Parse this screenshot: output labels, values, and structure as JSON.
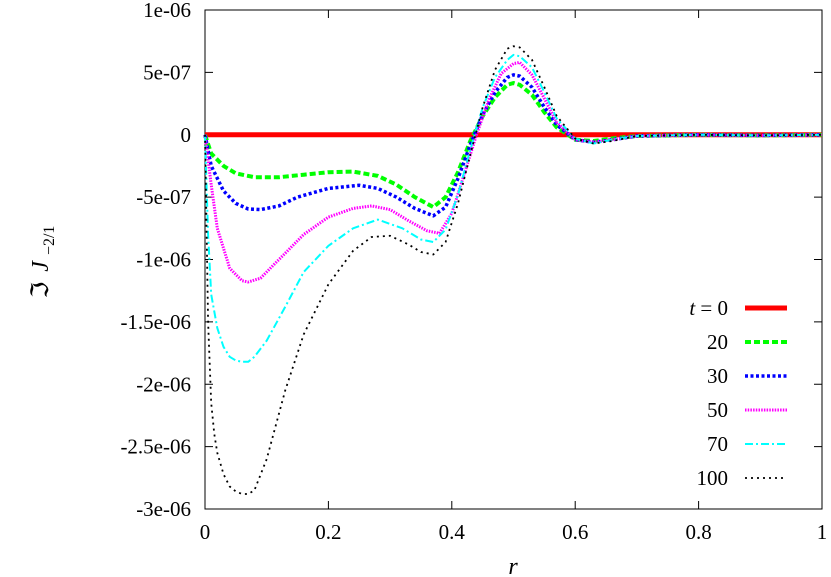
{
  "chart_data": {
    "type": "line",
    "xlabel": "r",
    "ylabel_prefix": "ℑ",
    "ylabel_main": "J",
    "ylabel_sub": "−2/1",
    "xlim": [
      0,
      1
    ],
    "ylim": [
      -3e-06,
      1e-06
    ],
    "x_ticks": [
      "0",
      "0.2",
      "0.4",
      "0.6",
      "0.8",
      "1"
    ],
    "y_ticks": [
      "1e-06",
      "5e-07",
      "0",
      "-5e-07",
      "-1e-06",
      "-1.5e-06",
      "-2e-06",
      "-2.5e-06",
      "-3e-06"
    ],
    "legend_position": "bottom-right",
    "legend_title_prefix": "t = ",
    "series": [
      {
        "name": "0",
        "color": "#ff0000",
        "dash": "solid",
        "x": [
          0,
          0.1,
          0.2,
          0.3,
          0.4,
          0.5,
          0.6,
          0.7,
          0.8,
          0.9,
          1.0
        ],
        "y": [
          0,
          0,
          0,
          0,
          0,
          0,
          0,
          0,
          0,
          0,
          0
        ]
      },
      {
        "name": "20",
        "color": "#00ff00",
        "dash": "dash",
        "x": [
          0,
          0.01,
          0.03,
          0.05,
          0.08,
          0.12,
          0.16,
          0.2,
          0.24,
          0.28,
          0.31,
          0.34,
          0.37,
          0.39,
          0.41,
          0.43,
          0.45,
          0.47,
          0.49,
          0.5,
          0.51,
          0.53,
          0.55,
          0.57,
          0.6,
          0.63,
          0.66,
          0.7,
          0.8,
          0.9,
          1.0
        ],
        "y": [
          0,
          -1.5e-07,
          -2.5e-07,
          -3.1e-07,
          -3.4e-07,
          -3.4e-07,
          -3.2e-07,
          -3e-07,
          -2.95e-07,
          -3.3e-07,
          -4e-07,
          -5e-07,
          -5.8e-07,
          -5e-07,
          -3e-07,
          -5e-08,
          1.5e-07,
          3e-07,
          4e-07,
          4.15e-07,
          4e-07,
          3.2e-07,
          1.8e-07,
          6e-08,
          -4e-08,
          -5e-08,
          -3e-08,
          -1e-08,
          0,
          -5e-09,
          0
        ]
      },
      {
        "name": "30",
        "color": "#0000ff",
        "dash": "dot",
        "x": [
          0,
          0.01,
          0.03,
          0.05,
          0.07,
          0.09,
          0.12,
          0.15,
          0.2,
          0.25,
          0.28,
          0.31,
          0.34,
          0.37,
          0.39,
          0.41,
          0.43,
          0.45,
          0.47,
          0.49,
          0.5,
          0.51,
          0.53,
          0.55,
          0.57,
          0.6,
          0.63,
          0.66,
          0.7,
          0.8,
          0.9,
          1.0
        ],
        "y": [
          0,
          -2.5e-07,
          -4.5e-07,
          -5.5e-07,
          -5.95e-07,
          -6e-07,
          -5.7e-07,
          -5e-07,
          -4.3e-07,
          -4.05e-07,
          -4.3e-07,
          -5e-07,
          -5.9e-07,
          -6.5e-07,
          -5.8e-07,
          -3.5e-07,
          -8e-08,
          1.6e-07,
          3.4e-07,
          4.6e-07,
          4.8e-07,
          4.7e-07,
          3.8e-07,
          2.2e-07,
          8e-08,
          -4e-08,
          -6e-08,
          -4e-08,
          -1e-08,
          0,
          -5e-09,
          0
        ]
      },
      {
        "name": "50",
        "color": "#ff00ff",
        "dash": "dense",
        "x": [
          0,
          0.01,
          0.02,
          0.04,
          0.06,
          0.07,
          0.09,
          0.12,
          0.16,
          0.2,
          0.24,
          0.27,
          0.3,
          0.33,
          0.36,
          0.38,
          0.4,
          0.42,
          0.44,
          0.46,
          0.48,
          0.5,
          0.51,
          0.53,
          0.55,
          0.57,
          0.6,
          0.63,
          0.66,
          0.7,
          0.8,
          0.9,
          1.0
        ],
        "y": [
          0,
          -4e-07,
          -7.5e-07,
          -1.07e-06,
          -1.17e-06,
          -1.18e-06,
          -1.15e-06,
          -1e-06,
          -8e-07,
          -6.6e-07,
          -5.9e-07,
          -5.7e-07,
          -6e-07,
          -6.9e-07,
          -7.7e-07,
          -7.9e-07,
          -6.3e-07,
          -3.2e-07,
          0,
          2.8e-07,
          4.9e-07,
          5.7e-07,
          5.8e-07,
          4.8e-07,
          2.9e-07,
          1e-07,
          -4e-08,
          -6e-08,
          -4e-08,
          -1e-08,
          0,
          -5e-09,
          0
        ]
      },
      {
        "name": "70",
        "color": "#00ffff",
        "dash": "dashdot",
        "x": [
          0,
          0.005,
          0.01,
          0.02,
          0.03,
          0.04,
          0.05,
          0.06,
          0.07,
          0.08,
          0.1,
          0.13,
          0.16,
          0.2,
          0.24,
          0.28,
          0.32,
          0.35,
          0.37,
          0.39,
          0.41,
          0.43,
          0.45,
          0.47,
          0.49,
          0.5,
          0.51,
          0.53,
          0.55,
          0.57,
          0.6,
          0.63,
          0.66,
          0.7,
          0.8,
          0.9,
          1.0
        ],
        "y": [
          0,
          -8e-07,
          -1.28e-06,
          -1.55e-06,
          -1.7e-06,
          -1.78e-06,
          -1.81e-06,
          -1.82e-06,
          -1.82e-06,
          -1.78e-06,
          -1.65e-06,
          -1.38e-06,
          -1.1e-06,
          -8.9e-07,
          -7.5e-07,
          -6.8e-07,
          -7.5e-07,
          -8.4e-07,
          -8.6e-07,
          -7.6e-07,
          -4.8e-07,
          -1.2e-07,
          2.2e-07,
          4.6e-07,
          6e-07,
          6.4e-07,
          6.3e-07,
          5.4e-07,
          3.4e-07,
          1.3e-07,
          -3e-08,
          -7e-08,
          -4e-08,
          -1e-08,
          0,
          -5e-09,
          0
        ]
      },
      {
        "name": "100",
        "color": "#000000",
        "dash": "sparse",
        "x": [
          0,
          0.005,
          0.01,
          0.015,
          0.02,
          0.03,
          0.04,
          0.05,
          0.06,
          0.07,
          0.08,
          0.1,
          0.13,
          0.16,
          0.2,
          0.24,
          0.27,
          0.3,
          0.33,
          0.35,
          0.37,
          0.39,
          0.41,
          0.43,
          0.45,
          0.47,
          0.49,
          0.5,
          0.51,
          0.53,
          0.55,
          0.57,
          0.6,
          0.63,
          0.66,
          0.7,
          0.8,
          0.9,
          1.0
        ],
        "y": [
          0,
          -1.5e-06,
          -2.15e-06,
          -2.4e-06,
          -2.55e-06,
          -2.72e-06,
          -2.82e-06,
          -2.86e-06,
          -2.88e-06,
          -2.88e-06,
          -2.85e-06,
          -2.6e-06,
          -2.05e-06,
          -1.6e-06,
          -1.2e-06,
          -9.3e-07,
          -8.2e-07,
          -8.1e-07,
          -8.8e-07,
          -9.4e-07,
          -9.6e-07,
          -8.6e-07,
          -5.5e-07,
          -1.6e-07,
          2.2e-07,
          5.2e-07,
          6.9e-07,
          7.1e-07,
          7e-07,
          6e-07,
          3.8e-07,
          1.5e-07,
          -3e-08,
          -7e-08,
          -5e-08,
          -1e-08,
          0,
          -5e-09,
          0
        ]
      }
    ]
  }
}
